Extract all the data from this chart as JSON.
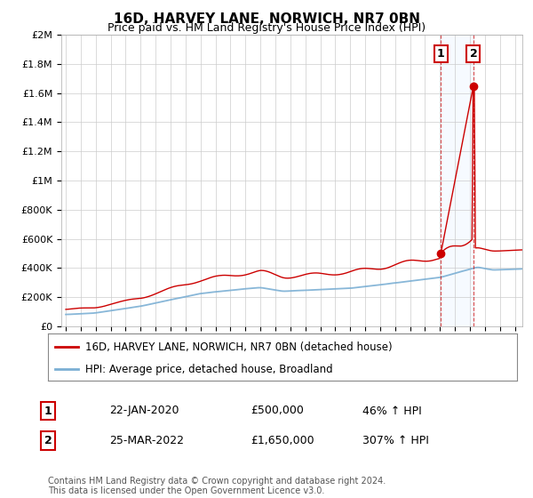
{
  "title": "16D, HARVEY LANE, NORWICH, NR7 0BN",
  "subtitle": "Price paid vs. HM Land Registry's House Price Index (HPI)",
  "legend_line1": "16D, HARVEY LANE, NORWICH, NR7 0BN (detached house)",
  "legend_line2": "HPI: Average price, detached house, Broadland",
  "annotation1_label": "1",
  "annotation1_date": "22-JAN-2020",
  "annotation1_price": "£500,000",
  "annotation1_hpi": "46% ↑ HPI",
  "annotation2_label": "2",
  "annotation2_date": "25-MAR-2022",
  "annotation2_price": "£1,650,000",
  "annotation2_hpi": "307% ↑ HPI",
  "footnote": "Contains HM Land Registry data © Crown copyright and database right 2024.\nThis data is licensed under the Open Government Licence v3.0.",
  "sale1_x": 2020.055,
  "sale1_y": 500000,
  "sale2_x": 2022.23,
  "sale2_y": 1650000,
  "red_color": "#cc0000",
  "blue_color": "#7bafd4",
  "shade_color": "#ddeeff",
  "ylim": [
    0,
    2000000
  ],
  "xlim_start": 1994.7,
  "xlim_end": 2025.5,
  "background_color": "#ffffff",
  "grid_color": "#cccccc"
}
